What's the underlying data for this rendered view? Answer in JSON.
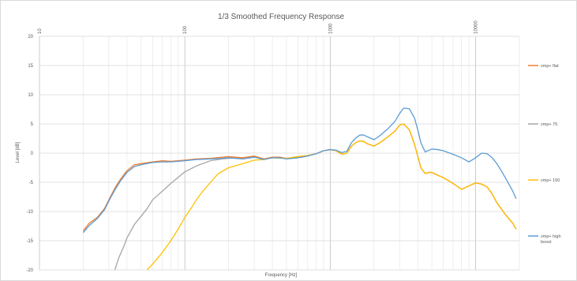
{
  "chart_data": {
    "type": "line",
    "title": "1/3 Smoothed Frequency Response",
    "xlabel": "Frequency [Hz]",
    "ylabel": "Level [dB]",
    "xscale": "log",
    "xlim": [
      10,
      20000
    ],
    "ylim": [
      -20,
      20
    ],
    "grid": true,
    "legend_position": "right",
    "x_ticks": [
      "10",
      "100",
      "1000",
      "10000"
    ],
    "y_ticks": [
      "20",
      "15",
      "10",
      "5",
      "0",
      "-5",
      "-10",
      "-15",
      "-20"
    ],
    "series": [
      {
        "name": "vmp+ flat",
        "color": "#ED7D31",
        "x": [
          20,
          22,
          25,
          28,
          30,
          33,
          36,
          40,
          45,
          50,
          60,
          70,
          80,
          100,
          120,
          150,
          180,
          200,
          250,
          300,
          350,
          400,
          450,
          500,
          600,
          700,
          800,
          900,
          1000,
          1100,
          1200,
          1300,
          1400,
          1500,
          1600,
          1700,
          1800,
          2000,
          2200,
          2500,
          2800,
          3000,
          3200,
          3500,
          3800,
          4000,
          4200,
          4500,
          4800,
          5000,
          5500,
          6000,
          7000,
          8000,
          9000,
          10000,
          11000,
          12000,
          13000,
          14000,
          15000,
          16000,
          18000,
          19000
        ],
        "y": [
          -13.3,
          -12,
          -11,
          -9.5,
          -8,
          -6,
          -4.5,
          -3,
          -2,
          -1.8,
          -1.5,
          -1.3,
          -1.4,
          -1.2,
          -1,
          -0.9,
          -0.7,
          -0.6,
          -0.8,
          -0.5,
          -1,
          -0.7,
          -0.7,
          -0.9,
          -0.7,
          -0.4,
          -0.1,
          0.4,
          0.6,
          0.4,
          -0.2,
          0,
          1.2,
          1.8,
          2.1,
          2,
          1.6,
          1.2,
          1.8,
          2.8,
          3.8,
          4.8,
          5,
          4,
          1.5,
          -0.5,
          -2.5,
          -3.5,
          -3.3,
          -3.3,
          -3.8,
          -4.2,
          -5.2,
          -6.2,
          -5.6,
          -5.1,
          -5.3,
          -5.8,
          -7,
          -8.5,
          -9.5,
          -10.5,
          -12,
          -13
        ]
      },
      {
        "name": "vmp+ 75",
        "color": "#A5A5A5",
        "x": [
          33,
          35,
          38,
          40,
          45,
          50,
          55,
          60,
          70,
          80,
          100,
          120,
          150,
          180,
          200,
          250,
          300,
          350,
          400,
          500,
          600,
          700,
          800,
          900,
          1000,
          1100,
          1200,
          1300,
          1400,
          1500,
          1600,
          1700,
          1800,
          2000,
          2200,
          2500,
          2800,
          3000,
          3200,
          3500,
          3800,
          4000,
          4200,
          4500,
          4800,
          5000,
          5500,
          6000,
          7000,
          8000,
          9000,
          10000,
          11000,
          12000,
          13000,
          14000,
          15000,
          16000,
          18000,
          19000
        ],
        "y": [
          -20,
          -18,
          -16,
          -14.5,
          -12.2,
          -10.8,
          -9.5,
          -8,
          -6.5,
          -5.2,
          -3.2,
          -2.2,
          -1.3,
          -1.0,
          -0.9,
          -0.8,
          -0.6,
          -1,
          -0.7,
          -0.9,
          -0.6,
          -0.4,
          -0.1,
          0.4,
          0.6,
          0.4,
          -0.2,
          0,
          1.2,
          1.8,
          2.1,
          2,
          1.6,
          1.2,
          1.8,
          2.8,
          3.8,
          4.8,
          5,
          4,
          1.5,
          -0.5,
          -2.5,
          -3.5,
          -3.3,
          -3.3,
          -3.8,
          -4.2,
          -5.2,
          -6.2,
          -5.6,
          -5.1,
          -5.3,
          -5.8,
          -7,
          -8.5,
          -9.5,
          -10.5,
          -12,
          -13
        ]
      },
      {
        "name": "vmp+ 150",
        "color": "#FFC000",
        "x": [
          55,
          60,
          65,
          70,
          80,
          90,
          100,
          110,
          120,
          130,
          150,
          170,
          200,
          250,
          300,
          350,
          400,
          500,
          600,
          700,
          800,
          900,
          1000,
          1100,
          1200,
          1300,
          1400,
          1500,
          1600,
          1700,
          1800,
          2000,
          2200,
          2500,
          2800,
          3000,
          3200,
          3500,
          3800,
          4000,
          4200,
          4500,
          4800,
          5000,
          5500,
          6000,
          7000,
          8000,
          9000,
          10000,
          11000,
          12000,
          13000,
          14000,
          15000,
          16000,
          18000,
          19000
        ],
        "y": [
          -20,
          -19,
          -18,
          -17,
          -15,
          -13,
          -11,
          -9.5,
          -8,
          -6.8,
          -5,
          -3.5,
          -2.5,
          -1.8,
          -1.2,
          -1.1,
          -0.8,
          -0.9,
          -0.6,
          -0.4,
          -0.1,
          0.4,
          0.6,
          0.4,
          -0.2,
          0,
          1.2,
          1.8,
          2.1,
          2,
          1.6,
          1.2,
          1.8,
          2.8,
          3.8,
          4.8,
          5,
          4,
          1.5,
          -0.5,
          -2.5,
          -3.5,
          -3.3,
          -3.3,
          -3.8,
          -4.2,
          -5.2,
          -6.2,
          -5.6,
          -5.1,
          -5.3,
          -5.8,
          -7,
          -8.5,
          -9.5,
          -10.5,
          -12,
          -13
        ]
      },
      {
        "name": "vmp+ high boost",
        "color": "#5B9BD5",
        "x": [
          20,
          22,
          25,
          28,
          30,
          33,
          36,
          40,
          45,
          50,
          60,
          70,
          80,
          100,
          120,
          150,
          180,
          200,
          250,
          300,
          350,
          400,
          450,
          500,
          600,
          700,
          800,
          900,
          1000,
          1100,
          1200,
          1300,
          1400,
          1500,
          1600,
          1700,
          1800,
          2000,
          2200,
          2500,
          2800,
          3000,
          3200,
          3500,
          3800,
          4000,
          4200,
          4500,
          5000,
          5500,
          6000,
          7000,
          8000,
          9000,
          10000,
          11000,
          12000,
          13000,
          14000,
          15000,
          16000,
          18000,
          19000
        ],
        "y": [
          -13.6,
          -12.4,
          -11.2,
          -9.7,
          -8.2,
          -6.3,
          -4.8,
          -3.3,
          -2.3,
          -2.0,
          -1.6,
          -1.5,
          -1.5,
          -1.3,
          -1.1,
          -1.0,
          -0.9,
          -0.8,
          -1.0,
          -0.7,
          -1.1,
          -0.8,
          -0.8,
          -1.0,
          -0.8,
          -0.5,
          -0.1,
          0.4,
          0.6,
          0.5,
          0.1,
          0.3,
          1.8,
          2.6,
          3.1,
          3.1,
          2.8,
          2.3,
          3,
          4.2,
          5.5,
          6.8,
          7.7,
          7.6,
          6,
          4,
          1.8,
          0.2,
          0.7,
          0.6,
          0.4,
          -0.2,
          -0.8,
          -1.5,
          -0.8,
          0,
          -0.1,
          -0.8,
          -1.8,
          -3,
          -4.2,
          -6.5,
          -7.8
        ]
      }
    ]
  }
}
